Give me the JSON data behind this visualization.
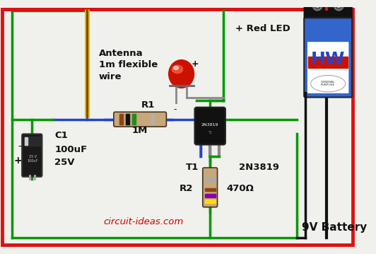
{
  "background_color": "#f0f0ec",
  "wire_red": "#dd1111",
  "wire_green": "#009900",
  "wire_blue": "#2244cc",
  "wire_black": "#111111",
  "wire_yellow": "#ddbb00",
  "wire_brown": "#7B3F00",
  "text_black": "#111111",
  "text_red": "#cc0000",
  "labels": {
    "antenna": "Antenna\n1m flexible\nwire",
    "led": "+ Red LED",
    "r1": "R1",
    "r1_val": "1M",
    "c1": "C1",
    "c1_val1": "100uF",
    "c1_val2": "25V",
    "t1": "T1",
    "t1_val": "2N3819",
    "r2": "R2",
    "r2_val": "470Ω",
    "battery": "9V Battery",
    "website": "circuit-ideas.com",
    "plus": "+",
    "minus": "-"
  },
  "figsize": [
    5.32,
    3.59
  ],
  "dpi": 100
}
